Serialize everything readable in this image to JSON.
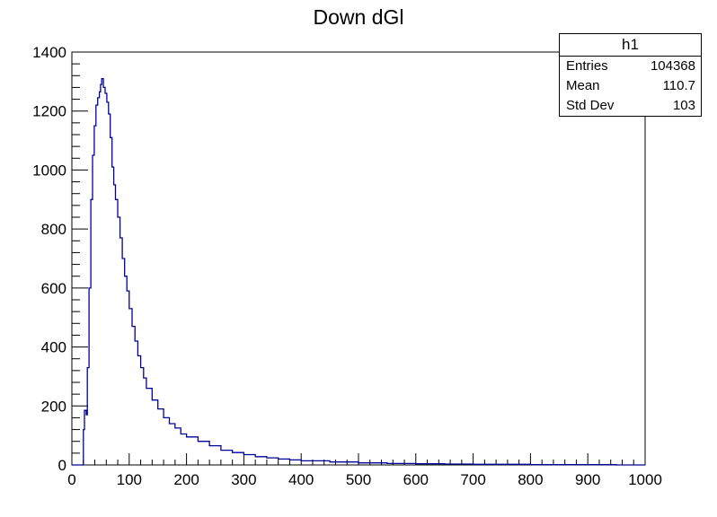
{
  "chart_data": {
    "type": "bar",
    "title": "Down dGl",
    "xlabel": "",
    "ylabel": "",
    "xlim": [
      0,
      1000
    ],
    "ylim": [
      0,
      1400
    ],
    "x_ticks": [
      "0",
      "100",
      "200",
      "300",
      "400",
      "500",
      "600",
      "700",
      "800",
      "900",
      "1000"
    ],
    "y_ticks": [
      "0",
      "200",
      "400",
      "600",
      "800",
      "1000",
      "1200",
      "1400"
    ],
    "grid": false,
    "line_color": "#000099",
    "stats": {
      "name": "h1",
      "rows": [
        {
          "label": "Entries",
          "value": "104368"
        },
        {
          "label": "Mean",
          "value": "110.7"
        },
        {
          "label": "Std Dev",
          "value": "103"
        }
      ]
    },
    "points": [
      [
        0,
        0
      ],
      [
        18,
        0
      ],
      [
        20,
        120
      ],
      [
        22,
        185
      ],
      [
        25,
        170
      ],
      [
        27,
        330
      ],
      [
        30,
        600
      ],
      [
        33,
        900
      ],
      [
        36,
        1050
      ],
      [
        39,
        1150
      ],
      [
        42,
        1220
      ],
      [
        45,
        1245
      ],
      [
        48,
        1265
      ],
      [
        50,
        1290
      ],
      [
        52,
        1310
      ],
      [
        55,
        1280
      ],
      [
        58,
        1260
      ],
      [
        61,
        1230
      ],
      [
        64,
        1190
      ],
      [
        67,
        1110
      ],
      [
        70,
        1010
      ],
      [
        73,
        950
      ],
      [
        76,
        900
      ],
      [
        80,
        840
      ],
      [
        84,
        770
      ],
      [
        88,
        700
      ],
      [
        92,
        640
      ],
      [
        96,
        590
      ],
      [
        100,
        530
      ],
      [
        105,
        470
      ],
      [
        110,
        420
      ],
      [
        115,
        370
      ],
      [
        120,
        330
      ],
      [
        125,
        295
      ],
      [
        130,
        260
      ],
      [
        140,
        220
      ],
      [
        150,
        190
      ],
      [
        160,
        160
      ],
      [
        170,
        140
      ],
      [
        180,
        125
      ],
      [
        190,
        105
      ],
      [
        200,
        95
      ],
      [
        220,
        80
      ],
      [
        240,
        65
      ],
      [
        260,
        50
      ],
      [
        280,
        42
      ],
      [
        300,
        35
      ],
      [
        320,
        28
      ],
      [
        340,
        24
      ],
      [
        360,
        20
      ],
      [
        380,
        17
      ],
      [
        400,
        14
      ],
      [
        450,
        10
      ],
      [
        500,
        7
      ],
      [
        550,
        5
      ],
      [
        600,
        4
      ],
      [
        650,
        3
      ],
      [
        700,
        2
      ],
      [
        750,
        2
      ],
      [
        800,
        1
      ],
      [
        850,
        1
      ],
      [
        900,
        1
      ],
      [
        950,
        0
      ],
      [
        1000,
        0
      ]
    ]
  }
}
